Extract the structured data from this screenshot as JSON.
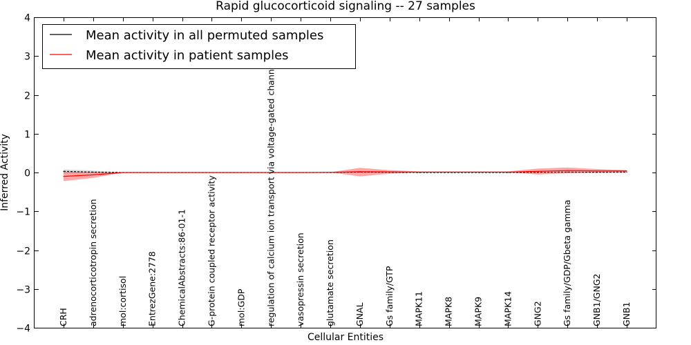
{
  "chart_data": {
    "type": "line",
    "title": "Rapid glucocorticoid signaling -- 27 samples",
    "xlabel": "Cellular Entities",
    "ylabel": "Inferred Activity",
    "ylim": [
      -4,
      4
    ],
    "yticks": [
      "4",
      "3",
      "2",
      "1",
      "0",
      "−1",
      "−2",
      "−3",
      "−4"
    ],
    "ytick_values": [
      4,
      3,
      2,
      1,
      0,
      -1,
      -2,
      -3,
      -4
    ],
    "grid": false,
    "legend_position": "top-left",
    "categories": [
      "CRH",
      "adrenocorticotropin secretion",
      "mol:cortisol",
      "EntrezGene:2778",
      "ChemicalAbstracts:86-01-1",
      "G-protein coupled receptor activity",
      "mol:GDP",
      "regulation of calcium ion transport via voltage-gated channel",
      "vasopressin secretion",
      "glutamate secretion",
      "GNAL",
      "Gs family/GTP",
      "MAPK11",
      "MAPK8",
      "MAPK9",
      "MAPK14",
      "GNG2",
      "Gs family/GDP/Gbeta gamma",
      "GNB1/GNG2",
      "GNB1"
    ],
    "series": [
      {
        "name": "Mean activity in all permuted samples",
        "color": "#000000",
        "values": [
          0.03,
          0.01,
          0,
          0,
          0,
          0,
          0,
          0,
          0,
          0,
          0.01,
          0.005,
          0,
          0,
          0,
          0,
          0.005,
          0.01,
          0.005,
          0.01
        ],
        "band_upper": [
          0.08,
          0.05,
          0,
          0,
          0,
          0,
          0,
          0,
          0,
          0,
          0.02,
          0.01,
          0,
          0,
          0,
          0,
          0.01,
          0.02,
          0.02,
          0.02
        ],
        "band_lower": [
          -0.02,
          -0.02,
          0,
          0,
          0,
          0,
          0,
          0,
          0,
          0,
          0,
          0,
          0,
          0,
          0,
          0,
          0,
          0,
          -0.01,
          -0.01
        ]
      },
      {
        "name": "Mean activity in patient samples",
        "color": "#ff0000",
        "fill": "#ff0000",
        "values": [
          -0.1,
          -0.06,
          0,
          0,
          0,
          0,
          0,
          0,
          0,
          0.005,
          0.02,
          0.015,
          0.01,
          0.01,
          0.01,
          0.01,
          0.03,
          0.05,
          0.04,
          0.04
        ],
        "band_upper": [
          0.02,
          0.01,
          0,
          0,
          0,
          0,
          0,
          0,
          0,
          0.01,
          0.12,
          0.06,
          0.03,
          0.03,
          0.03,
          0.03,
          0.1,
          0.13,
          0.09,
          0.06
        ],
        "band_lower": [
          -0.22,
          -0.14,
          0,
          0,
          0,
          0,
          0,
          0,
          0,
          0,
          -0.1,
          -0.03,
          0,
          0,
          0,
          0,
          -0.05,
          -0.02,
          0,
          0.02
        ]
      }
    ]
  }
}
